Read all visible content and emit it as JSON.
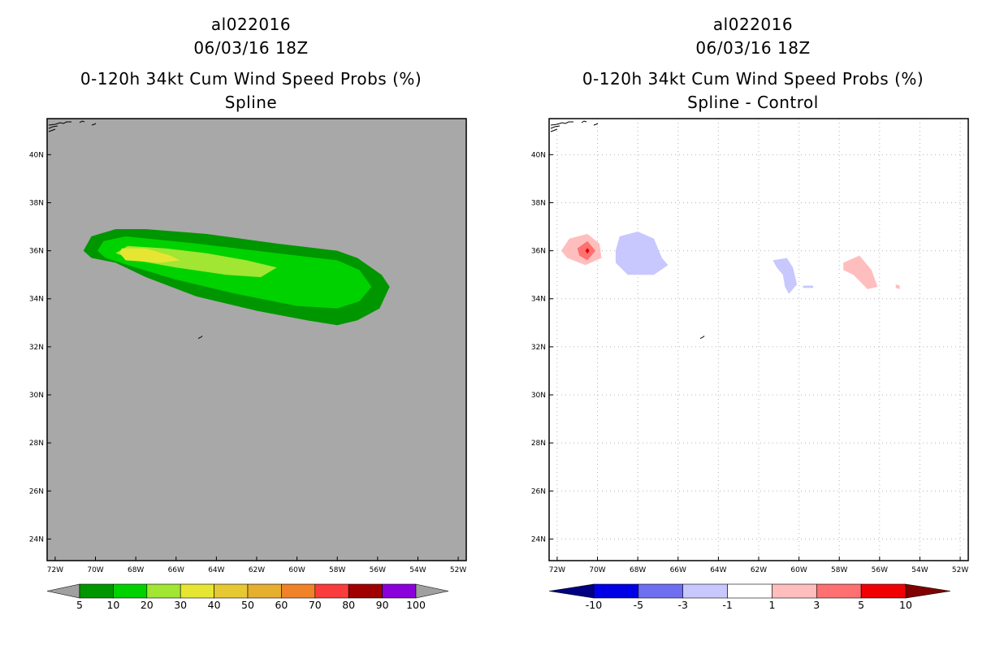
{
  "chart_data": [
    {
      "type": "contour",
      "title": [
        "al022016",
        "06/03/16 18Z",
        "0-120h 34kt Cum Wind Speed Probs (%)",
        "Spline"
      ],
      "x_ticks": [
        "72W",
        "70W",
        "68W",
        "66W",
        "64W",
        "62W",
        "60W",
        "58W",
        "56W",
        "54W",
        "52W"
      ],
      "y_ticks": [
        "40N",
        "38N",
        "36N",
        "34N",
        "32N",
        "30N",
        "28N",
        "26N",
        "24N"
      ],
      "xlim": [
        -72.4,
        -51.6
      ],
      "ylim": [
        23.1,
        41.5
      ],
      "background": "#a8a8a8",
      "levels": [
        {
          "min": 5,
          "color": "#009600",
          "polygon": [
            [
              -70.6,
              36.0
            ],
            [
              -70.2,
              36.6
            ],
            [
              -69.0,
              36.9
            ],
            [
              -67.5,
              36.9
            ],
            [
              -64.5,
              36.7
            ],
            [
              -61.0,
              36.3
            ],
            [
              -58.0,
              36.0
            ],
            [
              -57.0,
              35.7
            ],
            [
              -55.8,
              35.0
            ],
            [
              -55.4,
              34.5
            ],
            [
              -55.9,
              33.6
            ],
            [
              -57.0,
              33.1
            ],
            [
              -58.0,
              32.9
            ],
            [
              -59.5,
              33.1
            ],
            [
              -62.0,
              33.5
            ],
            [
              -65.0,
              34.1
            ],
            [
              -67.5,
              34.9
            ],
            [
              -69.0,
              35.5
            ],
            [
              -70.2,
              35.7
            ]
          ]
        },
        {
          "min": 10,
          "color": "#00d200",
          "polygon": [
            [
              -69.9,
              36.0
            ],
            [
              -69.6,
              36.4
            ],
            [
              -68.5,
              36.6
            ],
            [
              -65.0,
              36.3
            ],
            [
              -61.0,
              35.9
            ],
            [
              -58.0,
              35.6
            ],
            [
              -56.9,
              35.2
            ],
            [
              -56.3,
              34.5
            ],
            [
              -56.9,
              33.9
            ],
            [
              -58.0,
              33.6
            ],
            [
              -60.0,
              33.7
            ],
            [
              -63.0,
              34.2
            ],
            [
              -66.0,
              34.8
            ],
            [
              -68.0,
              35.3
            ],
            [
              -69.5,
              35.7
            ]
          ]
        },
        {
          "min": 20,
          "color": "#a0e632",
          "polygon": [
            [
              -69.0,
              35.9
            ],
            [
              -68.4,
              36.2
            ],
            [
              -66.5,
              36.1
            ],
            [
              -64.5,
              35.9
            ],
            [
              -62.5,
              35.6
            ],
            [
              -61.0,
              35.3
            ],
            [
              -61.8,
              34.9
            ],
            [
              -63.5,
              35.0
            ],
            [
              -66.0,
              35.3
            ],
            [
              -68.0,
              35.6
            ]
          ]
        },
        {
          "min": 30,
          "color": "#e6e632",
          "polygon": [
            [
              -68.8,
              35.9
            ],
            [
              -68.7,
              36.1
            ],
            [
              -67.5,
              36.1
            ],
            [
              -66.3,
              35.8
            ],
            [
              -65.8,
              35.6
            ],
            [
              -66.8,
              35.5
            ],
            [
              -68.5,
              35.6
            ]
          ]
        }
      ],
      "colorbar": {
        "labels": [
          "5",
          "10",
          "20",
          "30",
          "40",
          "50",
          "60",
          "70",
          "80",
          "90",
          "100"
        ],
        "colors": [
          "#009600",
          "#00d200",
          "#a0e632",
          "#e6e632",
          "#e6c832",
          "#e6af2d",
          "#f08228",
          "#fa3c3c",
          "#a00000",
          "#8c00dc"
        ],
        "end_color": "#a0a0a0"
      }
    },
    {
      "type": "contour",
      "title": [
        "al022016",
        "06/03/16 18Z",
        "0-120h 34kt Cum Wind Speed Probs (%)",
        "Spline - Control"
      ],
      "x_ticks": [
        "72W",
        "70W",
        "68W",
        "66W",
        "64W",
        "62W",
        "60W",
        "58W",
        "56W",
        "54W",
        "52W"
      ],
      "y_ticks": [
        "40N",
        "38N",
        "36N",
        "34N",
        "32N",
        "30N",
        "28N",
        "26N",
        "24N"
      ],
      "xlim": [
        -72.4,
        -51.6
      ],
      "ylim": [
        23.1,
        41.5
      ],
      "background": "#ffffff",
      "grid": true,
      "features": [
        {
          "color": "#ffbebe",
          "polygon": [
            [
              -71.8,
              36.0
            ],
            [
              -71.4,
              36.5
            ],
            [
              -70.5,
              36.7
            ],
            [
              -69.9,
              36.3
            ],
            [
              -69.8,
              35.7
            ],
            [
              -70.6,
              35.4
            ],
            [
              -71.5,
              35.7
            ]
          ]
        },
        {
          "color": "#ff7070",
          "polygon": [
            [
              -71.0,
              36.1
            ],
            [
              -70.5,
              36.4
            ],
            [
              -70.1,
              36.0
            ],
            [
              -70.5,
              35.6
            ],
            [
              -70.9,
              35.8
            ]
          ]
        },
        {
          "color": "#e00000",
          "polygon": [
            [
              -70.6,
              36.0
            ],
            [
              -70.5,
              36.12
            ],
            [
              -70.4,
              36.0
            ],
            [
              -70.5,
              35.88
            ]
          ]
        },
        {
          "color": "#c8c8ff",
          "polygon": [
            [
              -69.1,
              36.0
            ],
            [
              -68.9,
              36.6
            ],
            [
              -68.0,
              36.8
            ],
            [
              -67.2,
              36.5
            ],
            [
              -66.8,
              35.7
            ],
            [
              -66.5,
              35.4
            ],
            [
              -67.2,
              35.0
            ],
            [
              -68.5,
              35.0
            ],
            [
              -69.1,
              35.5
            ]
          ]
        },
        {
          "color": "#c8c8ff",
          "polygon": [
            [
              -61.3,
              35.6
            ],
            [
              -60.6,
              35.7
            ],
            [
              -60.3,
              35.3
            ],
            [
              -60.1,
              34.6
            ],
            [
              -60.5,
              34.2
            ],
            [
              -60.7,
              34.5
            ],
            [
              -60.8,
              35.0
            ],
            [
              -61.1,
              35.3
            ]
          ]
        },
        {
          "color": "#c8c8ff",
          "polygon": [
            [
              -59.8,
              34.55
            ],
            [
              -59.3,
              34.55
            ],
            [
              -59.3,
              34.45
            ],
            [
              -59.8,
              34.45
            ]
          ]
        },
        {
          "color": "#ffbebe",
          "polygon": [
            [
              -57.8,
              35.5
            ],
            [
              -57.0,
              35.8
            ],
            [
              -56.4,
              35.2
            ],
            [
              -56.1,
              34.5
            ],
            [
              -56.6,
              34.4
            ],
            [
              -57.3,
              35.0
            ],
            [
              -57.8,
              35.2
            ]
          ]
        },
        {
          "color": "#ffbebe",
          "polygon": [
            [
              -55.2,
              34.6
            ],
            [
              -55.0,
              34.55
            ],
            [
              -55.0,
              34.4
            ],
            [
              -55.2,
              34.45
            ]
          ]
        }
      ],
      "colorbar": {
        "labels": [
          "-10",
          "-5",
          "-3",
          "-1",
          "1",
          "3",
          "5",
          "10"
        ],
        "colors": [
          "#0000e6",
          "#6e6ef0",
          "#c8c8ff",
          "#ffffff",
          "#ffbebe",
          "#ff7070",
          "#f00000"
        ],
        "left_color": "#000080",
        "right_color": "#800000"
      }
    }
  ]
}
